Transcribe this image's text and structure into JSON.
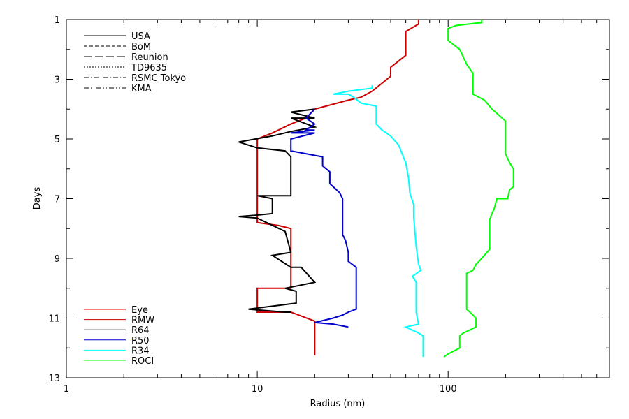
{
  "chart_data": {
    "type": "line",
    "title": "",
    "xlabel": "Radius (nm)",
    "ylabel": "Days",
    "x_scale": "log",
    "xlim": [
      1,
      700
    ],
    "ylim": [
      13,
      1
    ],
    "y_inverted": true,
    "x_ticks_major": [
      1,
      10,
      100
    ],
    "x_ticks_major_labels": [
      "1",
      "10",
      "100"
    ],
    "y_ticks_major": [
      1,
      3,
      5,
      7,
      9,
      11,
      13
    ],
    "y_ticks_major_labels": [
      "1",
      "3",
      "5",
      "7",
      "9",
      "11",
      "13"
    ],
    "grid": false,
    "agency_legend": {
      "placement": "top-left",
      "entries": [
        {
          "name": "USA",
          "dash": "solid"
        },
        {
          "name": "BoM",
          "dash": "short-dash"
        },
        {
          "name": "Reunion",
          "dash": "long-dash"
        },
        {
          "name": "TD9635",
          "dash": "dotted"
        },
        {
          "name": "RSMC Tokyo",
          "dash": "dash-dot"
        },
        {
          "name": "KMA",
          "dash": "dash-dot-dot"
        }
      ]
    },
    "series_legend": {
      "placement": "bottom-left",
      "entries": [
        {
          "name": "Eye",
          "color": "#ff0000"
        },
        {
          "name": "RMW",
          "color": "#cc0000"
        },
        {
          "name": "R64",
          "color": "#000000"
        },
        {
          "name": "R50",
          "color": "#0000cc"
        },
        {
          "name": "R34",
          "color": "#00ffff"
        },
        {
          "name": "ROCI",
          "color": "#00ff00"
        }
      ]
    },
    "series": [
      {
        "name": "RMW",
        "color": "#cc0000",
        "points": [
          [
            70,
            1.0
          ],
          [
            70,
            1.15
          ],
          [
            60,
            1.4
          ],
          [
            60,
            2.2
          ],
          [
            50,
            2.6
          ],
          [
            50,
            2.9
          ],
          [
            40,
            3.4
          ],
          [
            35,
            3.6
          ],
          [
            30,
            3.7
          ],
          [
            20,
            4.0
          ],
          [
            18,
            4.3
          ],
          [
            15,
            4.5
          ],
          [
            12,
            4.8
          ],
          [
            10,
            5.0
          ],
          [
            10,
            6.0
          ],
          [
            10,
            7.0
          ],
          [
            10,
            7.8
          ],
          [
            13,
            7.9
          ],
          [
            15,
            8.0
          ],
          [
            15,
            9.0
          ],
          [
            15,
            10.0
          ],
          [
            12,
            10.0
          ],
          [
            10,
            10.0
          ],
          [
            10,
            10.8
          ],
          [
            15,
            10.8
          ],
          [
            20,
            11.1
          ],
          [
            20,
            12.0
          ],
          [
            20,
            12.25
          ]
        ]
      },
      {
        "name": "R64",
        "color": "#000000",
        "points": [
          [
            20,
            4.0
          ],
          [
            15,
            4.1
          ],
          [
            20,
            4.3
          ],
          [
            15,
            4.3
          ],
          [
            20,
            4.6
          ],
          [
            15,
            4.75
          ],
          [
            12,
            4.9
          ],
          [
            8,
            5.1
          ],
          [
            10,
            5.3
          ],
          [
            14,
            5.4
          ],
          [
            15,
            5.6
          ],
          [
            15,
            6.9
          ],
          [
            10,
            6.9
          ],
          [
            12,
            7.0
          ],
          [
            12,
            7.5
          ],
          [
            10,
            7.55
          ],
          [
            8,
            7.6
          ],
          [
            10,
            7.65
          ],
          [
            14,
            8.1
          ],
          [
            15,
            8.8
          ],
          [
            12,
            8.9
          ],
          [
            15,
            9.3
          ],
          [
            17,
            9.3
          ],
          [
            20,
            9.8
          ],
          [
            14,
            10.0
          ],
          [
            16,
            10.1
          ],
          [
            16,
            10.5
          ],
          [
            9,
            10.7
          ],
          [
            14,
            10.8
          ],
          [
            15,
            10.8
          ]
        ]
      },
      {
        "name": "R50",
        "color": "#0000cc",
        "points": [
          [
            20,
            4.0
          ],
          [
            18,
            4.3
          ],
          [
            20,
            4.5
          ],
          [
            18,
            4.7
          ],
          [
            20,
            4.7
          ],
          [
            15,
            4.8
          ],
          [
            20,
            4.8
          ],
          [
            15,
            5.0
          ],
          [
            15,
            5.4
          ],
          [
            22,
            5.6
          ],
          [
            22,
            5.9
          ],
          [
            24,
            6.1
          ],
          [
            24,
            6.5
          ],
          [
            25,
            6.6
          ],
          [
            27,
            6.8
          ],
          [
            28,
            7.0
          ],
          [
            28,
            8.2
          ],
          [
            29,
            8.4
          ],
          [
            30,
            8.8
          ],
          [
            30,
            9.1
          ],
          [
            33,
            9.3
          ],
          [
            33,
            10.7
          ],
          [
            30,
            10.8
          ],
          [
            28,
            10.9
          ],
          [
            25,
            11.0
          ],
          [
            20,
            11.15
          ],
          [
            25,
            11.2
          ],
          [
            30,
            11.3
          ]
        ]
      },
      {
        "name": "R34",
        "color": "#00ffff",
        "points": [
          [
            40,
            3.2
          ],
          [
            40,
            3.3
          ],
          [
            30,
            3.4
          ],
          [
            25,
            3.5
          ],
          [
            30,
            3.5
          ],
          [
            32,
            3.6
          ],
          [
            35,
            3.8
          ],
          [
            42,
            3.9
          ],
          [
            42,
            4.5
          ],
          [
            45,
            4.7
          ],
          [
            50,
            4.9
          ],
          [
            55,
            5.2
          ],
          [
            60,
            5.8
          ],
          [
            62,
            6.3
          ],
          [
            63,
            6.8
          ],
          [
            66,
            7.2
          ],
          [
            66,
            7.6
          ],
          [
            68,
            8.6
          ],
          [
            70,
            9.2
          ],
          [
            72,
            9.4
          ],
          [
            65,
            9.6
          ],
          [
            68,
            9.8
          ],
          [
            68,
            10.8
          ],
          [
            70,
            11.2
          ],
          [
            60,
            11.3
          ],
          [
            70,
            11.5
          ],
          [
            74,
            11.6
          ],
          [
            74,
            12.3
          ]
        ]
      },
      {
        "name": "ROCI",
        "color": "#00ff00",
        "points": [
          [
            150,
            1.0
          ],
          [
            150,
            1.1
          ],
          [
            110,
            1.2
          ],
          [
            100,
            1.3
          ],
          [
            100,
            1.7
          ],
          [
            115,
            2.0
          ],
          [
            125,
            2.5
          ],
          [
            135,
            2.8
          ],
          [
            135,
            3.5
          ],
          [
            155,
            3.7
          ],
          [
            170,
            4.0
          ],
          [
            200,
            4.4
          ],
          [
            200,
            5.5
          ],
          [
            210,
            5.8
          ],
          [
            220,
            6.0
          ],
          [
            220,
            6.6
          ],
          [
            210,
            6.7
          ],
          [
            205,
            7.0
          ],
          [
            180,
            7.0
          ],
          [
            175,
            7.3
          ],
          [
            170,
            7.5
          ],
          [
            165,
            7.7
          ],
          [
            165,
            8.7
          ],
          [
            145,
            9.1
          ],
          [
            140,
            9.2
          ],
          [
            135,
            9.4
          ],
          [
            125,
            9.5
          ],
          [
            125,
            10.7
          ],
          [
            135,
            10.9
          ],
          [
            140,
            11.0
          ],
          [
            140,
            11.3
          ],
          [
            120,
            11.5
          ],
          [
            115,
            11.6
          ],
          [
            115,
            12.0
          ],
          [
            100,
            12.2
          ],
          [
            95,
            12.3
          ]
        ]
      }
    ]
  }
}
